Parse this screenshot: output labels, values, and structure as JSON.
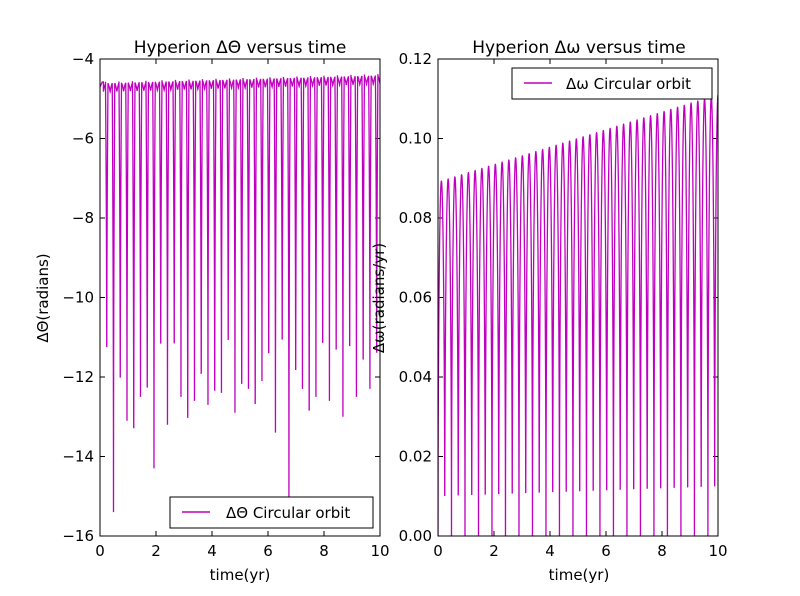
{
  "chart_data": [
    {
      "type": "line",
      "title": "Hyperion  ΔΘ versus time",
      "xlabel": "time(yr)",
      "ylabel": "ΔΘ(radians)",
      "xlim": [
        0,
        10
      ],
      "ylim": [
        -16,
        -4
      ],
      "xticks": [
        0,
        2,
        4,
        6,
        8,
        10
      ],
      "xtick_labels": [
        "0",
        "2",
        "4",
        "6",
        "8",
        "10"
      ],
      "yticks": [
        -16,
        -14,
        -12,
        -10,
        -8,
        -6,
        -4
      ],
      "ytick_labels": [
        "−16",
        "−14",
        "−12",
        "−10",
        "−8",
        "−6",
        "−4"
      ],
      "grid": false,
      "legend_position": "lower-right",
      "series": [
        {
          "name": "ΔΘ Circular orbit",
          "color": "#bf00bf",
          "period_yr": 0.241,
          "start_value": -4.7,
          "peak_start": -4.58,
          "peak_end": -4.38,
          "dip_minima": [
            -12.4,
            -15.4,
            -13.3,
            -13.1,
            -14.8,
            -12.5,
            -13.6,
            -14.3,
            -12.3,
            -13.2,
            -12.3,
            -12.5,
            -14.5,
            -12.6,
            -13.2,
            -12.7,
            -13.7,
            -12.4,
            -12.2,
            -12.9,
            -13.5,
            -12.3,
            -14.1,
            -12.1,
            -12.6,
            -13.4,
            -12.2,
            -15.2,
            -13.1,
            -12.3,
            -14.3,
            -12.5,
            -12.3,
            -12.6,
            -12.5,
            -13.0,
            -12.4,
            -12.5,
            -12.8,
            -12.3,
            -12.6
          ]
        }
      ]
    },
    {
      "type": "line",
      "title": "Hyperion  Δω versus time",
      "xlabel": "time(yr)",
      "ylabel": "Δω(radians/yr)",
      "xlim": [
        0,
        10
      ],
      "ylim": [
        0,
        0.12
      ],
      "xticks": [
        0,
        2,
        4,
        6,
        8,
        10
      ],
      "xtick_labels": [
        "0",
        "2",
        "4",
        "6",
        "8",
        "10"
      ],
      "yticks": [
        0,
        0.02,
        0.04,
        0.06,
        0.08,
        0.1,
        0.12
      ],
      "ytick_labels": [
        "0.00",
        "0.02",
        "0.04",
        "0.06",
        "0.08",
        "0.10",
        "0.12"
      ],
      "grid": false,
      "legend_position": "upper-right",
      "series": [
        {
          "name": "Δω Circular orbit",
          "color": "#bf00bf",
          "period_yr": 0.241,
          "peak_start": 0.089,
          "peak_end": 0.111,
          "trough": 0.0
        }
      ]
    }
  ]
}
